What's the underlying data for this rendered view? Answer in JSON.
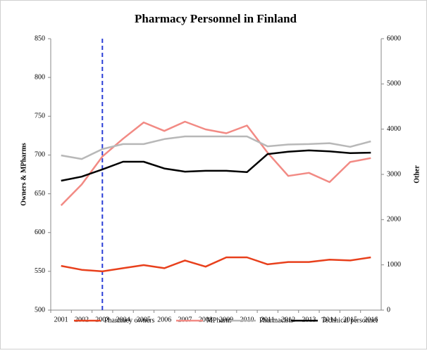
{
  "chart_data": {
    "type": "line",
    "title": "Pharmacy Personnel in Finland",
    "y_label": "Owners & MPharms",
    "y2_label": "Other",
    "categories": [
      "2001",
      "2002",
      "2003",
      "2004",
      "2005",
      "2006",
      "2007",
      "2008",
      "2009",
      "2010",
      "2011",
      "2012",
      "2013",
      "2014",
      "2015",
      "2016"
    ],
    "series": [
      {
        "name": "Pharmacy owners",
        "color": "#e8401c",
        "axis": "y",
        "values": [
          557,
          552,
          550,
          554,
          558,
          554,
          564,
          556,
          568,
          568,
          559,
          562,
          562,
          565,
          564,
          568
        ]
      },
      {
        "name": "MPharm",
        "color": "#f28a84",
        "axis": "y",
        "values": [
          635,
          662,
          698,
          721,
          742,
          731,
          743,
          733,
          728,
          738,
          703,
          673,
          677,
          665,
          691,
          696
        ]
      },
      {
        "name": "Pharmacists",
        "color": "#b8b8b8",
        "axis": "y2",
        "values": [
          3420,
          3340,
          3560,
          3670,
          3670,
          3780,
          3840,
          3840,
          3840,
          3840,
          3620,
          3660,
          3670,
          3690,
          3610,
          3730
        ]
      },
      {
        "name": "Technical personnel",
        "color": "#000000",
        "axis": "y2",
        "values": [
          2860,
          2950,
          3110,
          3280,
          3280,
          3130,
          3060,
          3080,
          3080,
          3050,
          3450,
          3500,
          3530,
          3510,
          3470,
          3480
        ]
      }
    ],
    "ylim": [
      500,
      850
    ],
    "yticks": [
      500,
      550,
      600,
      650,
      700,
      750,
      800,
      850
    ],
    "y2lim": [
      0,
      6000
    ],
    "y2ticks": [
      0,
      1000,
      2000,
      3000,
      4000,
      5000,
      6000
    ],
    "vline": {
      "x": "2003",
      "color": "#2b3fd6"
    },
    "legend": "bottom"
  }
}
